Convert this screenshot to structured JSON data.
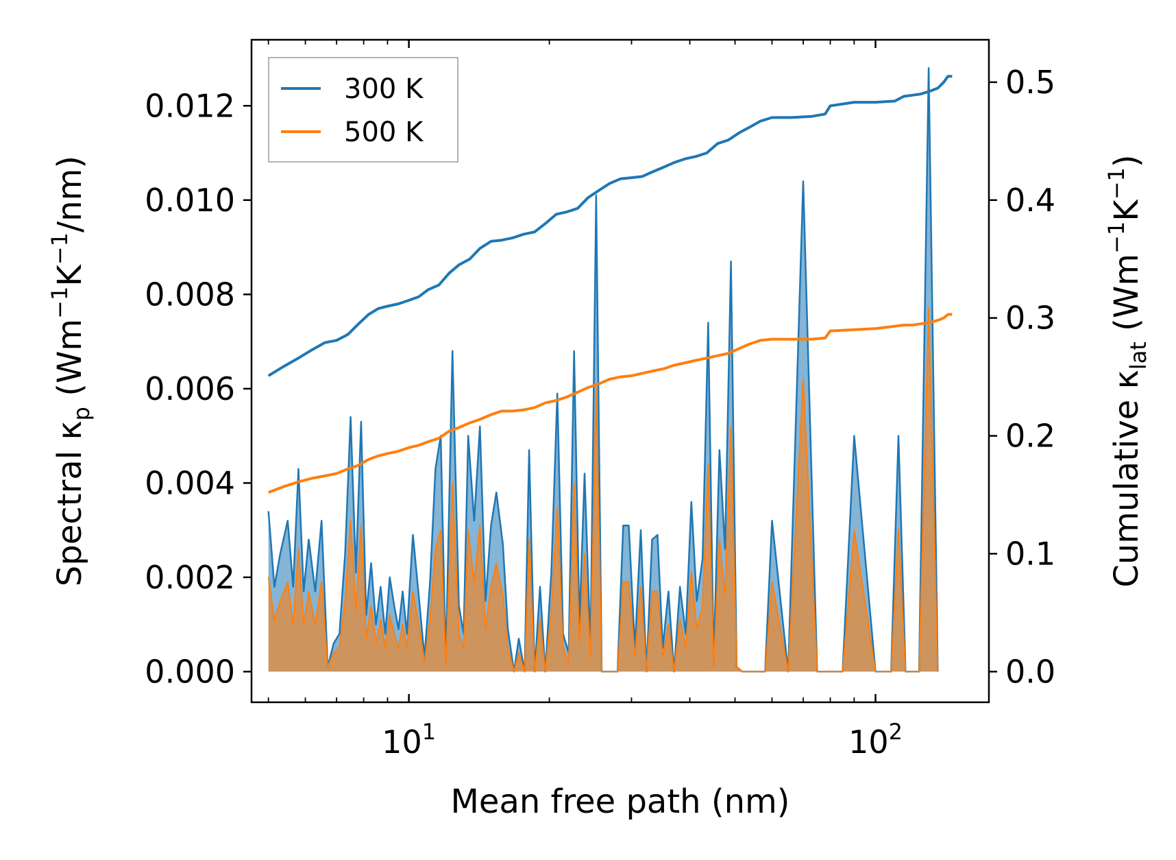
{
  "chart_data": {
    "type": "line",
    "xscale": "log",
    "xlim": [
      4.6,
      175
    ],
    "ylim_left": [
      -0.00065,
      0.0134
    ],
    "ylim_right": [
      -0.026,
      0.536
    ],
    "xlabel": "Mean free path (nm)",
    "ylabel_left": "Spectral κp (Wm−1K−1/nm)",
    "ylabel_left_parts": {
      "main": "Spectral κ",
      "sub": "p",
      "units_a": " (Wm",
      "sup1": "−1",
      "units_b": "K",
      "sup2": "−1",
      "units_c": "/nm)"
    },
    "ylabel_right": "Cumulative κlat (Wm−1K−1)",
    "ylabel_right_parts": {
      "main": "Cumulative κ",
      "sub": "lat",
      "units_a": " (Wm",
      "sup1": "−1",
      "units_b": "K",
      "sup2": "−1",
      "units_c": ")"
    },
    "x_ticks": [
      {
        "value": 10,
        "base": "10",
        "exp": "1"
      },
      {
        "value": 100,
        "base": "10",
        "exp": "2"
      }
    ],
    "y_ticks_left": [
      {
        "value": 0.0,
        "label": "0.000"
      },
      {
        "value": 0.002,
        "label": "0.002"
      },
      {
        "value": 0.004,
        "label": "0.004"
      },
      {
        "value": 0.006,
        "label": "0.006"
      },
      {
        "value": 0.008,
        "label": "0.008"
      },
      {
        "value": 0.01,
        "label": "0.010"
      },
      {
        "value": 0.012,
        "label": "0.012"
      }
    ],
    "y_ticks_right": [
      {
        "value": 0.0,
        "label": "0.0"
      },
      {
        "value": 0.1,
        "label": "0.1"
      },
      {
        "value": 0.2,
        "label": "0.2"
      },
      {
        "value": 0.3,
        "label": "0.3"
      },
      {
        "value": 0.4,
        "label": "0.4"
      },
      {
        "value": 0.5,
        "label": "0.5"
      }
    ],
    "legend": {
      "position": "top-left",
      "entries": [
        {
          "name": "300 K",
          "color": "#1f77b4"
        },
        {
          "name": "500 K",
          "color": "#ff7f0e"
        }
      ]
    },
    "spectral_x": [
      5.0,
      5.15,
      5.3,
      5.5,
      5.65,
      5.8,
      5.95,
      6.1,
      6.3,
      6.5,
      6.7,
      6.9,
      7.1,
      7.3,
      7.5,
      7.7,
      7.9,
      8.1,
      8.3,
      8.5,
      8.7,
      8.9,
      9.1,
      9.3,
      9.5,
      9.7,
      9.9,
      10.2,
      10.5,
      10.8,
      11.1,
      11.4,
      11.7,
      12.0,
      12.4,
      12.8,
      13.1,
      13.4,
      13.8,
      14.2,
      14.6,
      15.0,
      15.4,
      15.9,
      16.3,
      16.8,
      17.2,
      17.7,
      18.1,
      18.6,
      19.1,
      19.6,
      20.2,
      20.8,
      21.4,
      22.0,
      22.6,
      23.2,
      23.8,
      24.5,
      25.2,
      25.9,
      26.6,
      27.3,
      28.0,
      28.8,
      29.6,
      30.5,
      31.4,
      32.3,
      33.2,
      34.1,
      35.0,
      36.0,
      37.0,
      38.1,
      39.2,
      40.3,
      41.4,
      42.6,
      43.8,
      45.0,
      46.3,
      47.6,
      49.0,
      50.4,
      51.8,
      53.3,
      54.8,
      56.4,
      58.0,
      60.0,
      65.0,
      70.0,
      75.0,
      77.0,
      79.0,
      81.0,
      85.0,
      90.0,
      100.0,
      108.0,
      112.0,
      116.0,
      120.0,
      124.0,
      130.0,
      136.0,
      140.0,
      143.0,
      146.0
    ],
    "spectral_300K": [
      0.0034,
      0.0018,
      0.0025,
      0.0032,
      0.0018,
      0.0043,
      0.0017,
      0.0028,
      0.0017,
      0.0032,
      0.0001,
      0.0006,
      0.0008,
      0.0025,
      0.0054,
      0.0021,
      0.0053,
      0.0012,
      0.0023,
      0.001,
      0.0018,
      0.0008,
      0.002,
      0.0014,
      0.0009,
      0.0017,
      0.0008,
      0.0029,
      0.0016,
      0.0003,
      0.0019,
      0.0043,
      0.005,
      0.0002,
      0.0068,
      0.0014,
      0.0008,
      0.005,
      0.0032,
      0.0052,
      0.0015,
      0.0031,
      0.0038,
      0.0027,
      0.0009,
      0.0,
      0.0007,
      0.0,
      0.0047,
      0.0,
      0.0018,
      0.0,
      0.0021,
      0.0059,
      0.0008,
      0.0004,
      0.0068,
      0.001,
      0.0042,
      0.0005,
      0.0101,
      0.0,
      0.0,
      0.0,
      0.0,
      0.0031,
      0.0031,
      0.0005,
      0.003,
      0.0,
      0.0028,
      0.0029,
      0.0005,
      0.0017,
      0.0,
      0.0018,
      0.0008,
      0.0036,
      0.0015,
      0.0024,
      0.0074,
      0.0002,
      0.0047,
      0.0026,
      0.0087,
      0.0001,
      0.0,
      0.0,
      0.0,
      0.0,
      0.0,
      0.0032,
      0.0,
      0.0104,
      0.0,
      0.0,
      0.0,
      0.0,
      0.0,
      0.005,
      0.0,
      0.0,
      0.005,
      0.0,
      0.0,
      0.0,
      0.0128,
      0.0
    ],
    "spectral_500K": [
      0.002,
      0.0011,
      0.0015,
      0.0019,
      0.001,
      0.0026,
      0.001,
      0.0017,
      0.001,
      0.0019,
      0.0001,
      0.0004,
      0.0005,
      0.0015,
      0.0032,
      0.0013,
      0.0031,
      0.0007,
      0.0014,
      0.0006,
      0.0011,
      0.0005,
      0.0012,
      0.0008,
      0.0005,
      0.001,
      0.0005,
      0.0017,
      0.001,
      0.0002,
      0.0011,
      0.0026,
      0.003,
      0.0001,
      0.004,
      0.0008,
      0.0005,
      0.003,
      0.0019,
      0.0031,
      0.0009,
      0.0018,
      0.0023,
      0.0016,
      0.0005,
      0.0,
      0.0004,
      0.0,
      0.0028,
      0.0,
      0.0011,
      0.0,
      0.0013,
      0.0035,
      0.0005,
      0.0002,
      0.004,
      0.0006,
      0.0025,
      0.0003,
      0.006,
      0.0,
      0.0,
      0.0,
      0.0,
      0.0019,
      0.0019,
      0.0003,
      0.0018,
      0.0,
      0.0017,
      0.0017,
      0.0003,
      0.001,
      0.0,
      0.0011,
      0.0005,
      0.0021,
      0.0009,
      0.0014,
      0.0044,
      0.0001,
      0.0028,
      0.0016,
      0.0052,
      0.0001,
      0.0,
      0.0,
      0.0,
      0.0,
      0.0,
      0.0019,
      0.0,
      0.0062,
      0.0,
      0.0,
      0.0,
      0.0,
      0.0,
      0.003,
      0.0,
      0.0,
      0.003,
      0.0,
      0.0,
      0.0,
      0.0077,
      0.0
    ],
    "cumulative_x": [
      5.0,
      5.4,
      5.8,
      6.2,
      6.6,
      7.0,
      7.4,
      7.8,
      8.2,
      8.6,
      9.0,
      9.5,
      10.0,
      10.5,
      11.0,
      11.6,
      12.2,
      12.8,
      13.5,
      14.2,
      15.0,
      15.8,
      16.7,
      17.6,
      18.6,
      19.6,
      20.7,
      21.8,
      23.0,
      24.2,
      25.5,
      26.9,
      28.4,
      30.0,
      31.6,
      33.3,
      35.2,
      37.1,
      39.1,
      41.2,
      43.5,
      45.9,
      48.4,
      51.0,
      53.8,
      56.7,
      60.0,
      66.0,
      73.0,
      78.0,
      80.0,
      90.0,
      100.0,
      110.0,
      115.0,
      120.0,
      125.0,
      130.0,
      136.0,
      140.0,
      143.0,
      146.0
    ],
    "cumulative_300K": [
      0.251,
      0.259,
      0.266,
      0.273,
      0.279,
      0.281,
      0.286,
      0.295,
      0.303,
      0.308,
      0.31,
      0.312,
      0.315,
      0.318,
      0.324,
      0.328,
      0.338,
      0.345,
      0.35,
      0.359,
      0.365,
      0.366,
      0.368,
      0.371,
      0.373,
      0.38,
      0.388,
      0.39,
      0.393,
      0.402,
      0.408,
      0.414,
      0.418,
      0.419,
      0.42,
      0.424,
      0.428,
      0.432,
      0.435,
      0.437,
      0.44,
      0.448,
      0.451,
      0.457,
      0.462,
      0.467,
      0.47,
      0.47,
      0.471,
      0.473,
      0.48,
      0.483,
      0.483,
      0.484,
      0.488,
      0.489,
      0.49,
      0.492,
      0.495,
      0.5,
      0.505,
      0.505
    ],
    "cumulative_500K": [
      0.152,
      0.157,
      0.161,
      0.164,
      0.166,
      0.168,
      0.172,
      0.175,
      0.18,
      0.183,
      0.185,
      0.187,
      0.19,
      0.192,
      0.195,
      0.198,
      0.204,
      0.207,
      0.211,
      0.214,
      0.218,
      0.221,
      0.221,
      0.222,
      0.224,
      0.228,
      0.23,
      0.233,
      0.237,
      0.241,
      0.244,
      0.248,
      0.25,
      0.251,
      0.253,
      0.255,
      0.257,
      0.26,
      0.262,
      0.264,
      0.266,
      0.268,
      0.27,
      0.274,
      0.278,
      0.281,
      0.282,
      0.282,
      0.282,
      0.283,
      0.289,
      0.29,
      0.291,
      0.293,
      0.294,
      0.294,
      0.295,
      0.296,
      0.298,
      0.3,
      0.303,
      0.303
    ]
  }
}
